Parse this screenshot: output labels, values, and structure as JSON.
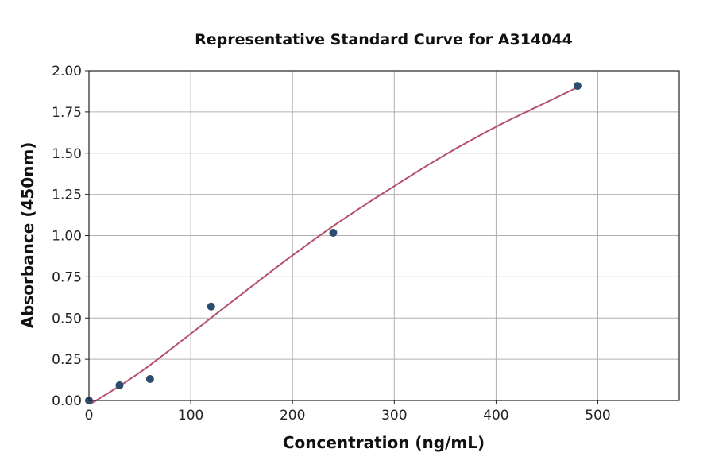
{
  "chart_data": {
    "type": "scatter",
    "title": "Representative Standard Curve for A314044",
    "xlabel": "Concentration (ng/mL)",
    "ylabel": "Absorbance (450nm)",
    "xlim": [
      0,
      580
    ],
    "ylim": [
      0,
      2.0
    ],
    "xticks": [
      "0",
      "100",
      "200",
      "300",
      "400",
      "500"
    ],
    "yticks": [
      "0.00",
      "0.25",
      "0.50",
      "0.75",
      "1.00",
      "1.25",
      "1.50",
      "1.75",
      "2.00"
    ],
    "grid": true,
    "points": {
      "x": [
        0,
        30,
        60,
        120,
        240,
        480
      ],
      "y": [
        0.0,
        0.092,
        0.13,
        0.57,
        1.017,
        1.908
      ],
      "color": "#2d4d6e"
    },
    "fit_curve": {
      "x": [
        0,
        7,
        50,
        100,
        150,
        200,
        250,
        300,
        350,
        400,
        450,
        480
      ],
      "y": [
        -0.02,
        0.0,
        0.17,
        0.405,
        0.645,
        0.88,
        1.1,
        1.3,
        1.49,
        1.66,
        1.81,
        1.9
      ],
      "color": "#b5506e"
    }
  }
}
